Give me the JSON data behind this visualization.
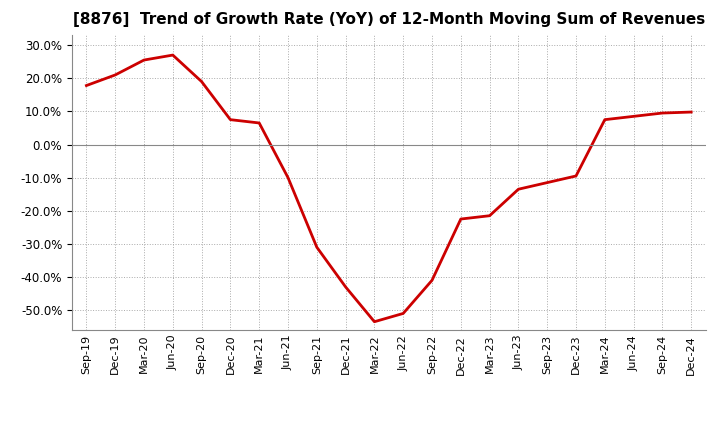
{
  "title": "[8876]  Trend of Growth Rate (YoY) of 12-Month Moving Sum of Revenues",
  "line_color": "#cc0000",
  "line_width": 2.0,
  "background_color": "#ffffff",
  "grid_color": "#aaaaaa",
  "ylim": [
    -0.56,
    0.33
  ],
  "yticks": [
    0.3,
    0.2,
    0.1,
    0.0,
    -0.1,
    -0.2,
    -0.3,
    -0.4,
    -0.5
  ],
  "values": [
    0.178,
    0.21,
    0.255,
    0.27,
    0.19,
    0.075,
    0.065,
    -0.1,
    -0.31,
    -0.43,
    -0.535,
    -0.51,
    -0.41,
    -0.225,
    -0.215,
    -0.135,
    -0.115,
    -0.095,
    0.075,
    0.085,
    0.095,
    0.098
  ],
  "tick_labels": [
    "Sep-19",
    "Dec-19",
    "Mar-20",
    "Jun-20",
    "Sep-20",
    "Dec-20",
    "Mar-21",
    "Jun-21",
    "Sep-21",
    "Dec-21",
    "Mar-22",
    "Jun-22",
    "Sep-22",
    "Dec-22",
    "Mar-23",
    "Jun-23",
    "Sep-23",
    "Dec-23",
    "Mar-24",
    "Jun-24",
    "Sep-24",
    "Dec-24"
  ],
  "title_fontsize": 11,
  "tick_fontsize": 8,
  "ytick_fontsize": 8.5
}
